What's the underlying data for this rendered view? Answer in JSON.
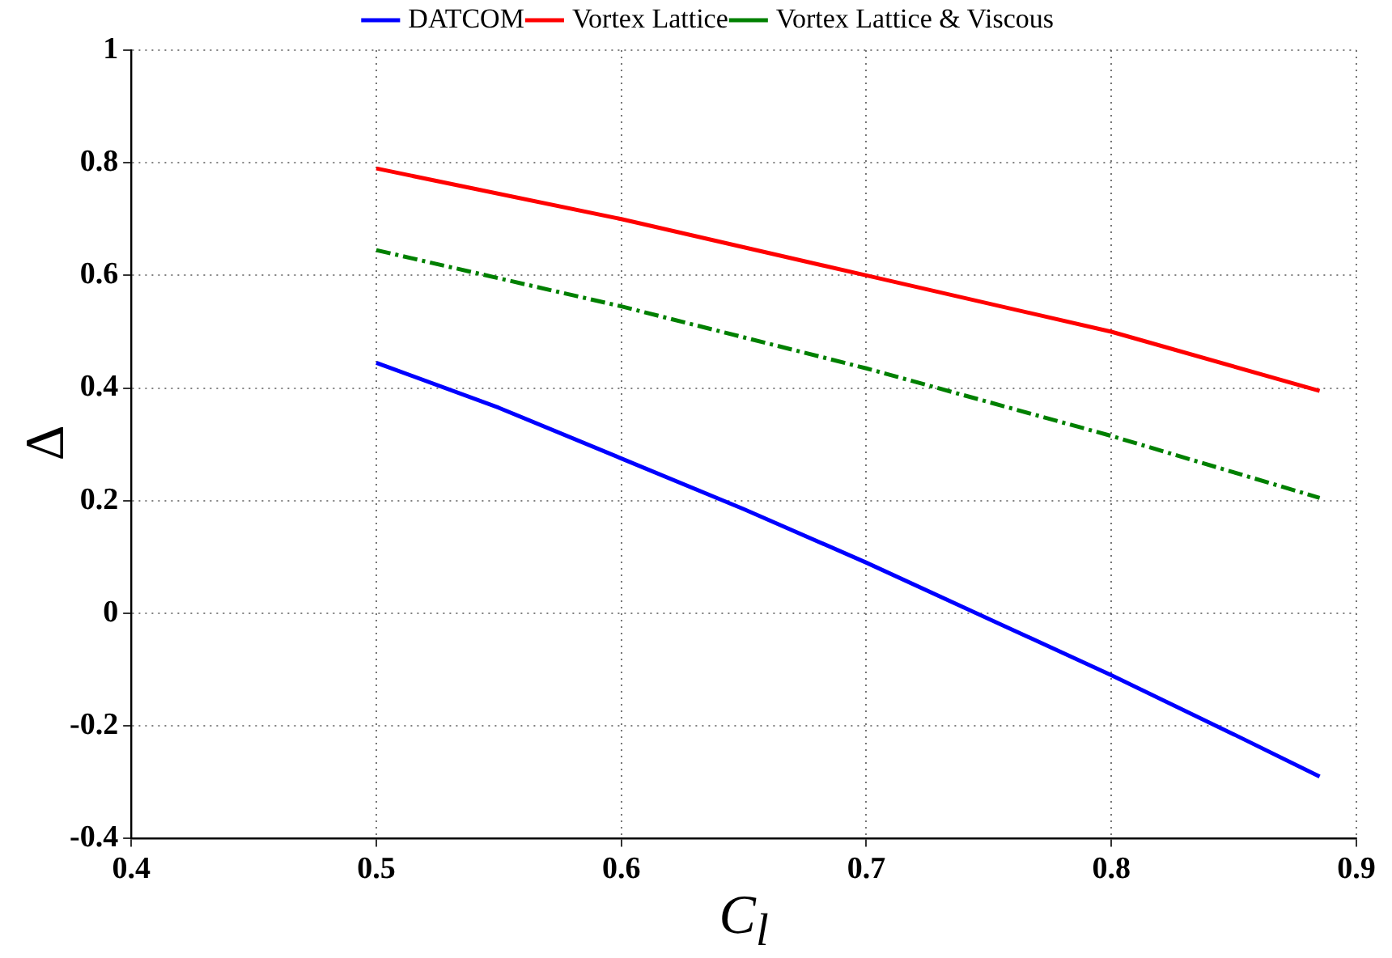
{
  "chart_data": {
    "type": "line",
    "xlabel": "C$_{l}$",
    "ylabel": "Δ",
    "xlim": [
      0.4,
      0.9
    ],
    "xticks": [
      0.4,
      0.5,
      0.6,
      0.7,
      0.8,
      0.9
    ],
    "ylim": [
      -0.4,
      1
    ],
    "yticks": [
      -0.4,
      -0.2,
      0,
      0.2,
      0.4,
      0.6,
      0.8,
      1
    ],
    "grid": true,
    "legend": "top",
    "marker": "none",
    "series": [
      {
        "name": "DATCOM",
        "color": "#0000ff",
        "line_style": "solid",
        "x": [
          0.5,
          0.55,
          0.6,
          0.65,
          0.7,
          0.75,
          0.8,
          0.85,
          0.885
        ],
        "values": [
          0.445,
          0.365,
          0.275,
          0.185,
          0.09,
          -0.01,
          -0.11,
          -0.215,
          -0.29
        ]
      },
      {
        "name": "Vortex Lattice",
        "color": "#ff0000",
        "line_style": "solid",
        "x": [
          0.5,
          0.6,
          0.7,
          0.8,
          0.885
        ],
        "values": [
          0.79,
          0.7,
          0.6,
          0.5,
          0.395
        ]
      },
      {
        "name": "Vortex Lattice & Viscous",
        "color": "#008000",
        "line_style": "dashed",
        "x": [
          0.5,
          0.6,
          0.7,
          0.8,
          0.885
        ],
        "values": [
          0.645,
          0.545,
          0.435,
          0.315,
          0.205
        ]
      }
    ]
  }
}
